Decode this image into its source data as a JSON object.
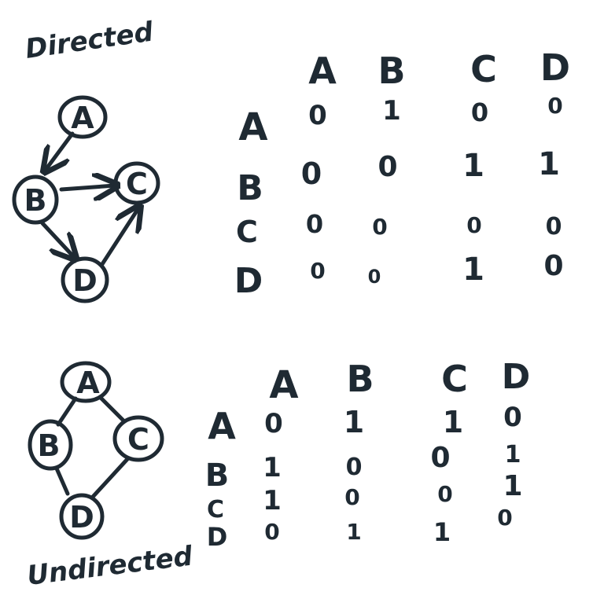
{
  "directed": {
    "title": "Directed",
    "nodes": [
      "A",
      "B",
      "C",
      "D"
    ],
    "edges": [
      [
        "A",
        "B"
      ],
      [
        "B",
        "C"
      ],
      [
        "B",
        "D"
      ],
      [
        "D",
        "C"
      ]
    ],
    "matrix": {
      "col_headers": [
        "A",
        "B",
        "C",
        "D"
      ],
      "row_headers": [
        "A",
        "B",
        "C",
        "D"
      ],
      "rows": [
        [
          "0",
          "1",
          "0",
          "0"
        ],
        [
          "0",
          "0",
          "1",
          "1"
        ],
        [
          "0",
          "0",
          "0",
          "0"
        ],
        [
          "0",
          "0",
          "1",
          "0"
        ]
      ]
    }
  },
  "undirected": {
    "title": "Undirected",
    "nodes": [
      "A",
      "B",
      "C",
      "D"
    ],
    "edges": [
      [
        "A",
        "B"
      ],
      [
        "A",
        "C"
      ],
      [
        "B",
        "D"
      ],
      [
        "C",
        "D"
      ]
    ],
    "matrix": {
      "col_headers": [
        "A",
        "B",
        "C",
        "D"
      ],
      "row_headers": [
        "A",
        "B",
        "C",
        "D"
      ],
      "rows": [
        [
          "0",
          "1",
          "1",
          "0"
        ],
        [
          "1",
          "0",
          "0",
          "1"
        ],
        [
          "1",
          "0",
          "0",
          "1"
        ],
        [
          "0",
          "1",
          "1",
          "0"
        ]
      ]
    }
  },
  "ink_color": "#1f2a33"
}
